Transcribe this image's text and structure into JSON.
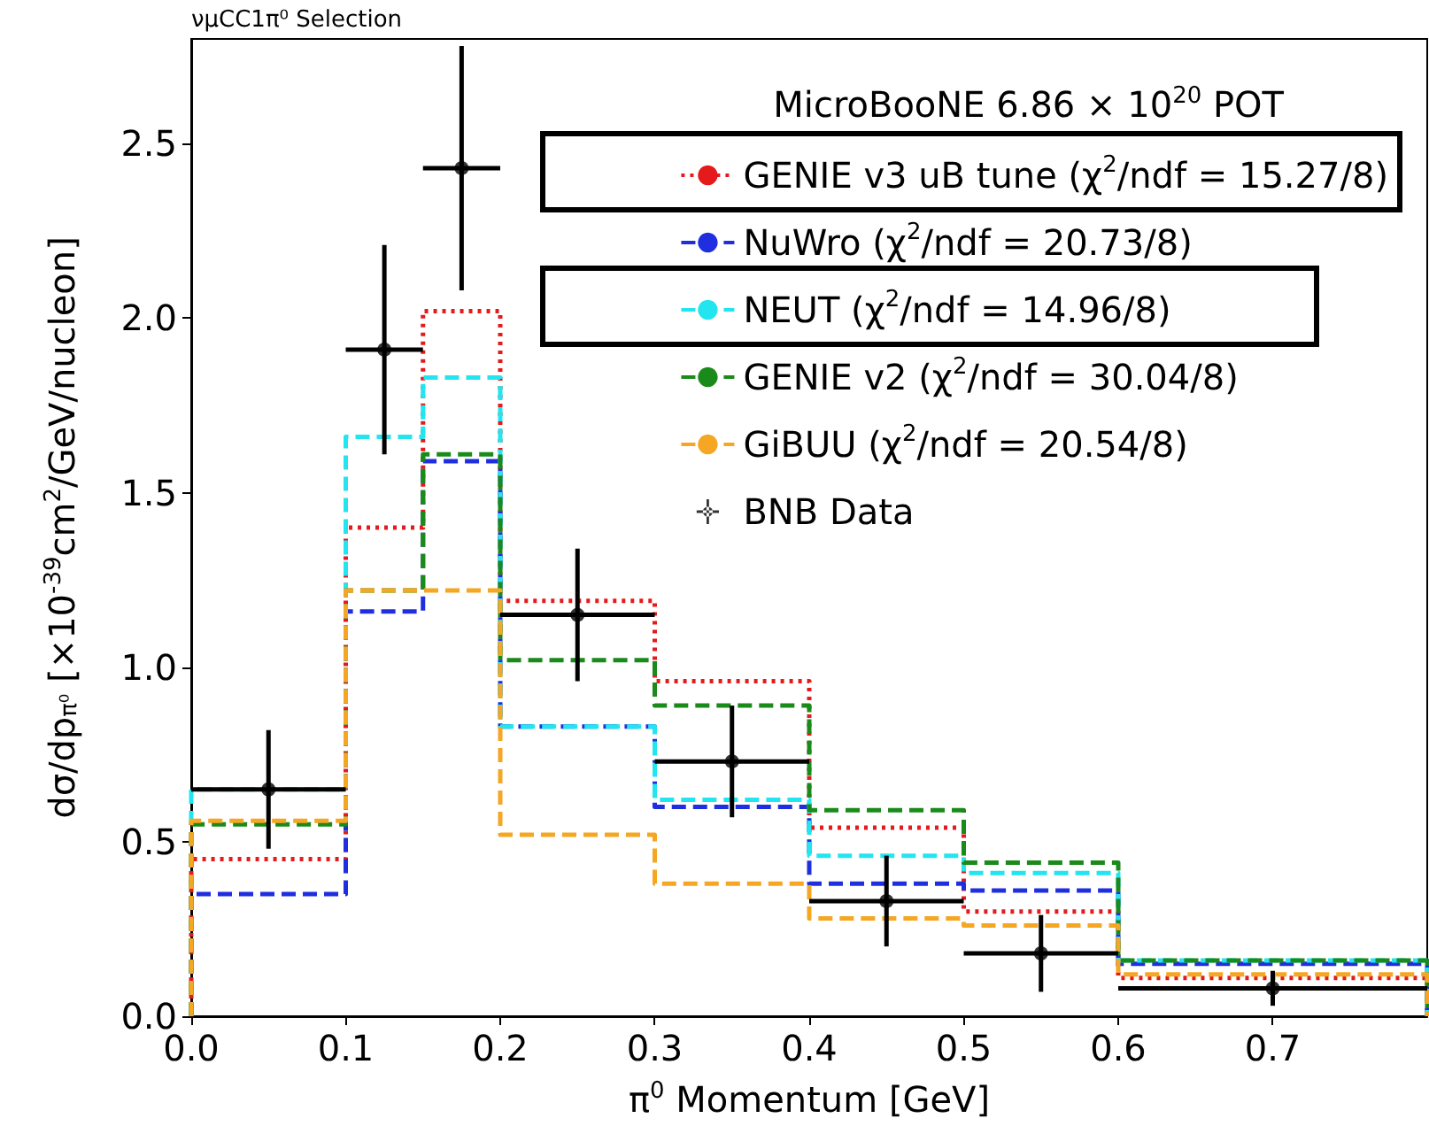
{
  "chart_data": {
    "type": "histogram",
    "title": "νμCC1π⁰ Selection",
    "xlabel": "π$^{0}$ Momentum [GeV]",
    "ylabel": "dσ/dp$_{π⁰}$ [×10$^{-39}$cm$^{2}$/GeV/nucleon]",
    "legend_title": "MicroBooNE 6.86 × 10$^{20}$ POT",
    "bins": [
      0,
      0.1,
      0.15,
      0.2,
      0.3,
      0.4,
      0.5,
      0.6,
      0.8
    ],
    "series": [
      {
        "name": "GENIE v3 uB tune (χ$^{2}$/ndf = 15.27/8)",
        "color": "#e41a1c",
        "line_style": "dotted",
        "values": [
          0.45,
          1.4,
          2.02,
          1.19,
          0.96,
          0.54,
          0.3,
          0.11
        ]
      },
      {
        "name": "NuWro (χ$^{2}$/ndf = 20.73/8)",
        "color": "#1f2fe0",
        "line_style": "dashed",
        "values": [
          0.35,
          1.16,
          1.59,
          0.83,
          0.6,
          0.38,
          0.36,
          0.15
        ]
      },
      {
        "name": "NEUT (χ$^{2}$/ndf = 14.96/8)",
        "color": "#22e5f0",
        "line_style": "dashed",
        "values": [
          0.65,
          1.66,
          1.83,
          0.83,
          0.62,
          0.46,
          0.41,
          0.16
        ]
      },
      {
        "name": "GENIE v2 (χ$^{2}$/ndf = 30.04/8)",
        "color": "#1a8a1a",
        "line_style": "dashed",
        "values": [
          0.55,
          1.22,
          1.61,
          1.02,
          0.89,
          0.59,
          0.44,
          0.16
        ]
      },
      {
        "name": "GiBUU (χ$^{2}$/ndf = 20.54/8)",
        "color": "#f5a623",
        "line_style": "dashed",
        "values": [
          0.56,
          1.22,
          1.22,
          0.52,
          0.38,
          0.28,
          0.26,
          0.12
        ]
      },
      {
        "name": "BNB Data",
        "type": "scatter",
        "color": "#000000",
        "x": [
          0.05,
          0.125,
          0.175,
          0.25,
          0.35,
          0.45,
          0.55,
          0.7
        ],
        "values": [
          0.65,
          1.91,
          2.43,
          1.15,
          0.73,
          0.33,
          0.18,
          0.08
        ],
        "errors": [
          0.17,
          0.3,
          0.35,
          0.19,
          0.16,
          0.13,
          0.11,
          0.05
        ],
        "xerrors": [
          0.05,
          0.025,
          0.025,
          0.05,
          0.05,
          0.05,
          0.05,
          0.1
        ]
      }
    ],
    "xlim": [
      0,
      0.8
    ],
    "xticks": [
      {
        "value": 0,
        "label": "0.0"
      },
      0.1,
      0.2,
      0.3,
      0.4,
      0.5,
      0.6,
      0.7
    ],
    "ylim": [
      0,
      2.8
    ],
    "yticks": [
      {
        "value": 0,
        "label": "0.0"
      },
      0.5,
      {
        "value": 1,
        "label": "1.0"
      },
      1.5,
      {
        "value": 2,
        "label": "2.0"
      },
      2.5
    ],
    "legend": "top right",
    "grid": false
  }
}
